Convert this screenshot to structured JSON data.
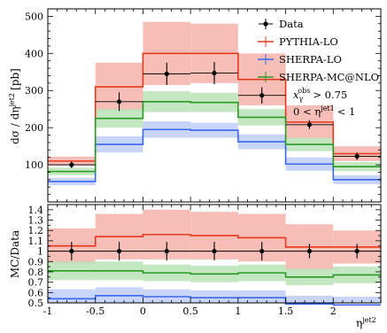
{
  "chart_data": {
    "type": "step",
    "x_edges": [
      -1,
      -0.5,
      0,
      0.5,
      1,
      1.5,
      2,
      2.5
    ],
    "x_ticks": [
      "-1",
      "-0.5",
      "0",
      "0.5",
      "1",
      "1.5",
      "2"
    ],
    "xlabel_main": "η",
    "xlabel_sup": "jet2",
    "top": {
      "ylabel": "dσ / dη",
      "ylabel_sup": "jet2",
      "ylabel_unit": "[pb]",
      "ylim": [
        0,
        520
      ],
      "y_ticks": [
        100,
        200,
        300,
        400,
        500
      ],
      "series": [
        {
          "name": "Data",
          "color": "#000000",
          "kind": "points",
          "x": [
            -0.75,
            -0.25,
            0.25,
            0.75,
            1.25,
            1.75,
            2.25
          ],
          "values": [
            100,
            270,
            345,
            347,
            287,
            208,
            123
          ],
          "errors": [
            9,
            25,
            30,
            30,
            22,
            12,
            10
          ]
        },
        {
          "name": "PYTHIA-LO",
          "color": "#e8381d",
          "band": "#f6b3ab",
          "kind": "step",
          "values": [
            110,
            310,
            400,
            400,
            330,
            215,
            130
          ],
          "band_half": [
            12,
            65,
            85,
            80,
            70,
            45,
            20
          ]
        },
        {
          "name": "SHERPA-LO",
          "color": "#3b66ee",
          "band": "#c0cdf8",
          "kind": "step",
          "values": [
            55,
            155,
            195,
            193,
            162,
            102,
            60
          ],
          "band_half": [
            10,
            22,
            22,
            20,
            20,
            18,
            12
          ]
        },
        {
          "name": "SHERPA-MC@NLO",
          "color": "#2a9a24",
          "band": "#b8e4b6",
          "kind": "step",
          "values": [
            82,
            225,
            270,
            268,
            228,
            155,
            95
          ],
          "band_half": [
            10,
            25,
            28,
            26,
            22,
            18,
            12
          ]
        }
      ],
      "cuts": [
        {
          "lhs": "x",
          "lhs_sub": "γ",
          "lhs_sup": "obs",
          "rel": "> 0.75"
        },
        {
          "lhs": "0 < η",
          "lhs_sup": "jet1",
          "rel": "< 1"
        }
      ]
    },
    "ratio": {
      "ylabel": "MC/Data",
      "ylim": [
        0.5,
        1.45
      ],
      "y_ticks": [
        "0.5",
        "0.6",
        "0.7",
        "0.8",
        "0.9",
        "1",
        "1.1",
        "1.2",
        "1.3",
        "1.4"
      ],
      "data_errors": [
        0.09,
        0.09,
        0.09,
        0.09,
        0.09,
        0.07,
        0.07
      ],
      "series": [
        {
          "name": "PYTHIA-LO",
          "values": [
            1.05,
            1.14,
            1.16,
            1.15,
            1.13,
            1.04,
            1.04
          ],
          "band_half": [
            0.17,
            0.22,
            0.24,
            0.23,
            0.23,
            0.22,
            0.16
          ]
        },
        {
          "name": "SHERPA-LO",
          "values": [
            0.54,
            0.57,
            0.56,
            0.55,
            0.55,
            0.49,
            0.48
          ],
          "band_half": [
            0.09,
            0.08,
            0.07,
            0.07,
            0.07,
            0.08,
            0.08
          ]
        },
        {
          "name": "SHERPA-MC@NLO",
          "values": [
            0.81,
            0.81,
            0.79,
            0.78,
            0.79,
            0.75,
            0.77
          ],
          "band_half": [
            0.09,
            0.09,
            0.08,
            0.08,
            0.08,
            0.08,
            0.08
          ]
        }
      ]
    }
  }
}
